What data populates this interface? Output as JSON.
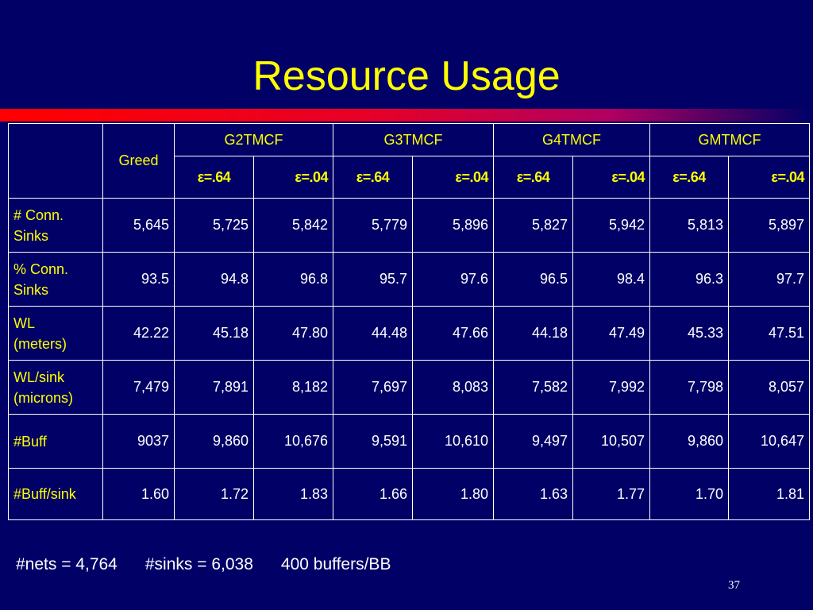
{
  "title": "Resource Usage",
  "greed_label": "Greed",
  "groups": [
    "G2TMCF",
    "G3TMCF",
    "G4TMCF",
    "GMTMCF"
  ],
  "epsilon": {
    "symbol": "ε",
    "high_value": "=.64",
    "low_value": "=.04"
  },
  "rows": [
    {
      "label": "# Conn. Sinks",
      "line1": "# Conn.",
      "line2": "Sinks",
      "values": [
        "5,645",
        "5,725",
        "5,842",
        "5,779",
        "5,896",
        "5,827",
        "5,942",
        "5,813",
        "5,897"
      ]
    },
    {
      "label": "% Conn. Sinks",
      "line1": "% Conn.",
      "line2": "Sinks",
      "values": [
        "93.5",
        "94.8",
        "96.8",
        "95.7",
        "97.6",
        "96.5",
        "98.4",
        "96.3",
        "97.7"
      ]
    },
    {
      "label": "WL (meters)",
      "line1": "WL",
      "line2": "(meters)",
      "values": [
        "42.22",
        "45.18",
        "47.80",
        "44.48",
        "47.66",
        "44.18",
        "47.49",
        "45.33",
        "47.51"
      ]
    },
    {
      "label": "WL/sink (microns)",
      "line1": "WL/sink",
      "line2": "(microns)",
      "values": [
        "7,479",
        "7,891",
        "8,182",
        "7,697",
        "8,083",
        "7,582",
        "7,992",
        "7,798",
        "8,057"
      ]
    },
    {
      "label": "#Buff",
      "line1": "#Buff",
      "line2": "",
      "values": [
        "9037",
        "9,860",
        "10,676",
        "9,591",
        "10,610",
        "9,497",
        "10,507",
        "9,860",
        "10,647"
      ]
    },
    {
      "label": "#Buff/sink",
      "line1": "#Buff/sink",
      "line2": "",
      "values": [
        "1.60",
        "1.72",
        "1.83",
        "1.66",
        "1.80",
        "1.63",
        "1.77",
        "1.70",
        "1.81"
      ]
    }
  ],
  "footnote": {
    "nets": "#nets = 4,764",
    "sinks": "#sinks = 6,038",
    "buffers": "400 buffers/BB"
  },
  "page_number": "37",
  "colors": {
    "background": "#000066",
    "title": "#ffff00",
    "header_text": "#ffff00",
    "body_text": "#ffffff",
    "bar_start": "#ff0000"
  }
}
